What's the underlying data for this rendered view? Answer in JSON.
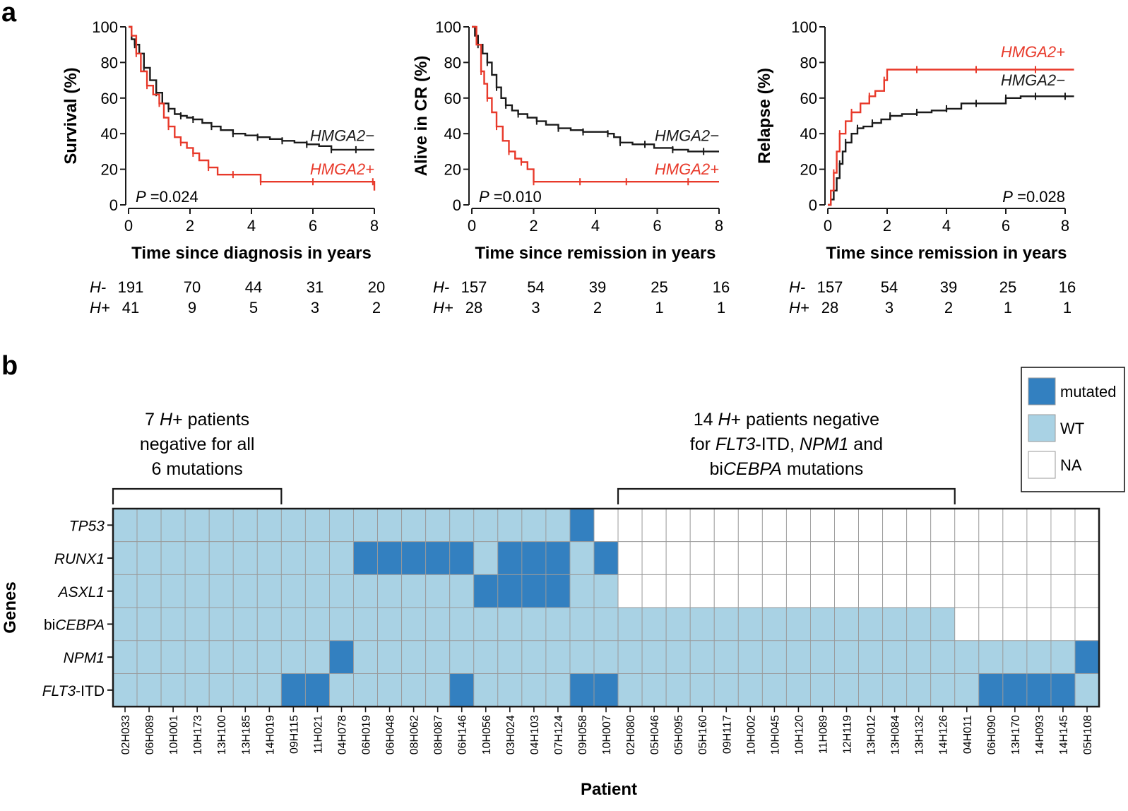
{
  "panel_labels": {
    "a": "a",
    "b": "b"
  },
  "colors": {
    "neg": "#1a1a1a",
    "pos": "#e8392a",
    "mutated": "#3380c0",
    "wt": "#a9d2e4",
    "na": "#ffffff",
    "grid": "#9a9a9a"
  },
  "chart_data": [
    {
      "type": "line",
      "title": "",
      "ylabel": "Survival (%)",
      "xlabel": "Time since diagnosis in years",
      "xlim": [
        0,
        8
      ],
      "ylim": [
        0,
        100
      ],
      "xticks": [
        0,
        2,
        4,
        6,
        8
      ],
      "yticks": [
        0,
        20,
        40,
        60,
        80,
        100
      ],
      "pvalue": {
        "prefix": "P",
        "text": " =0.024",
        "position": "bottom-left"
      },
      "series": [
        {
          "name": "HMGA2−",
          "color": "#1a1a1a",
          "x": [
            0,
            0.1,
            0.2,
            0.35,
            0.5,
            0.7,
            0.9,
            1.1,
            1.3,
            1.5,
            1.7,
            1.9,
            2.1,
            2.4,
            2.7,
            3.0,
            3.4,
            3.8,
            4.2,
            4.6,
            5.0,
            5.4,
            5.8,
            6.2,
            6.6,
            7.0,
            7.4,
            7.8,
            8.0
          ],
          "y": [
            100,
            93,
            90,
            85,
            77,
            70,
            63,
            57,
            54,
            51,
            50,
            49,
            48,
            46,
            44,
            42,
            40,
            39,
            38,
            37,
            36,
            35,
            34,
            33,
            31,
            31,
            31,
            31,
            31
          ]
        },
        {
          "name": "HMGA2+",
          "color": "#e8392a",
          "x": [
            0,
            0.1,
            0.25,
            0.4,
            0.6,
            0.8,
            1.0,
            1.15,
            1.3,
            1.5,
            1.7,
            1.9,
            2.1,
            2.3,
            2.6,
            2.9,
            3.4,
            4.0,
            4.3,
            5.0,
            6.0,
            7.0,
            7.95,
            8.0
          ],
          "y": [
            100,
            95,
            85,
            75,
            67,
            62,
            57,
            49,
            44,
            38,
            35,
            32,
            29,
            25,
            21,
            17,
            17,
            17,
            13,
            13,
            13,
            13,
            13,
            8
          ]
        }
      ],
      "curve_labels": [
        {
          "text": "HMGA2−",
          "at": [
            8,
            36
          ]
        },
        {
          "text": "HMGA2+",
          "at": [
            8,
            17
          ]
        }
      ],
      "at_risk": {
        "rows": [
          {
            "label": "H-",
            "values": [
              "191",
              "70",
              "44",
              "31",
              "20"
            ]
          },
          {
            "label": "H+",
            "values": [
              "41",
              "9",
              "5",
              "3",
              "2"
            ]
          }
        ]
      }
    },
    {
      "type": "line",
      "title": "",
      "ylabel": "Alive in CR (%)",
      "xlabel": "Time since remission in years",
      "xlim": [
        0,
        8
      ],
      "ylim": [
        0,
        100
      ],
      "xticks": [
        0,
        2,
        4,
        6,
        8
      ],
      "yticks": [
        0,
        20,
        40,
        60,
        80,
        100
      ],
      "pvalue": {
        "prefix": "P",
        "text": " =0.010",
        "position": "bottom-left"
      },
      "series": [
        {
          "name": "HMGA2−",
          "color": "#1a1a1a",
          "x": [
            0,
            0.1,
            0.2,
            0.35,
            0.5,
            0.65,
            0.8,
            0.95,
            1.1,
            1.3,
            1.5,
            1.8,
            2.1,
            2.4,
            2.8,
            3.2,
            3.6,
            4.0,
            4.4,
            4.6,
            4.8,
            5.2,
            5.6,
            5.9,
            6.5,
            7.0,
            7.5,
            8.0
          ],
          "y": [
            100,
            95,
            90,
            85,
            80,
            73,
            66,
            60,
            56,
            53,
            51,
            49,
            47,
            45,
            43,
            42,
            41,
            41,
            40,
            38,
            35,
            34,
            34,
            32,
            31,
            30,
            30,
            30
          ]
        },
        {
          "name": "HMGA2+",
          "color": "#e8392a",
          "x": [
            0,
            0.15,
            0.3,
            0.4,
            0.5,
            0.65,
            0.8,
            1.0,
            1.2,
            1.4,
            1.6,
            1.8,
            2.0,
            2.5,
            3.5,
            4.2,
            5.0,
            6.0,
            7.0,
            8.0
          ],
          "y": [
            100,
            90,
            75,
            68,
            60,
            52,
            44,
            36,
            30,
            26,
            24,
            20,
            13,
            13,
            13,
            13,
            13,
            13,
            13,
            13
          ]
        }
      ],
      "curve_labels": [
        {
          "text": "HMGA2−",
          "at": [
            8,
            36
          ]
        },
        {
          "text": "HMGA2+",
          "at": [
            8,
            17
          ]
        }
      ],
      "at_risk": {
        "rows": [
          {
            "label": "H-",
            "values": [
              "157",
              "54",
              "39",
              "25",
              "16"
            ]
          },
          {
            "label": "H+",
            "values": [
              "28",
              "3",
              "2",
              "1",
              "1"
            ]
          }
        ]
      }
    },
    {
      "type": "line",
      "title": "",
      "ylabel": "Relapse (%)",
      "xlabel": "Time since remission in years",
      "xlim": [
        0,
        8
      ],
      "ylim": [
        0,
        100
      ],
      "xticks": [
        0,
        2,
        4,
        6,
        8
      ],
      "yticks": [
        0,
        20,
        40,
        60,
        80,
        100
      ],
      "pvalue": {
        "prefix": "P",
        "text": " =0.028",
        "position": "bottom-right"
      },
      "series": [
        {
          "name": "HMGA2−",
          "color": "#1a1a1a",
          "x": [
            0,
            0.1,
            0.2,
            0.3,
            0.4,
            0.5,
            0.6,
            0.8,
            1.0,
            1.2,
            1.5,
            1.8,
            2.1,
            2.5,
            3.0,
            3.5,
            4.0,
            4.5,
            5.0,
            5.5,
            6.0,
            6.5,
            7.0,
            7.5,
            8.0,
            8.3
          ],
          "y": [
            0,
            3,
            8,
            15,
            23,
            30,
            35,
            40,
            43,
            44,
            46,
            48,
            50,
            51,
            52,
            53,
            54,
            57,
            57,
            57,
            60,
            61,
            61,
            61,
            61,
            61
          ]
        },
        {
          "name": "HMGA2+",
          "color": "#e8392a",
          "x": [
            0,
            0.1,
            0.2,
            0.3,
            0.4,
            0.6,
            0.8,
            1.1,
            1.4,
            1.6,
            1.9,
            2.0,
            3.0,
            4.0,
            5.0,
            6.0,
            7.0,
            8.0,
            8.3
          ],
          "y": [
            0,
            8,
            18,
            30,
            40,
            47,
            52,
            57,
            61,
            64,
            70,
            76,
            76,
            76,
            76,
            76,
            76,
            76,
            76
          ]
        }
      ],
      "curve_labels": [
        {
          "text": "HMGA2+",
          "at": [
            8,
            83
          ]
        },
        {
          "text": "HMGA2−",
          "at": [
            8,
            67
          ]
        }
      ],
      "at_risk": {
        "rows": [
          {
            "label": "H-",
            "values": [
              "157",
              "54",
              "39",
              "25",
              "16"
            ]
          },
          {
            "label": "H+",
            "values": [
              "28",
              "3",
              "2",
              "1",
              "1"
            ]
          }
        ]
      }
    },
    {
      "type": "heatmap",
      "ylabel": "Genes",
      "xlabel": "Patient",
      "genes": [
        {
          "pre": "",
          "italic": "TP53",
          "post": ""
        },
        {
          "pre": "",
          "italic": "RUNX1",
          "post": ""
        },
        {
          "pre": "",
          "italic": "ASXL1",
          "post": ""
        },
        {
          "pre": "bi",
          "italic": "CEBPA",
          "post": ""
        },
        {
          "pre": "",
          "italic": "NPM1",
          "post": ""
        },
        {
          "pre": "",
          "italic": "FLT3",
          "post": "-ITD"
        }
      ],
      "patients": [
        "02H033",
        "06H089",
        "10H001",
        "10H173",
        "13H100",
        "13H185",
        "14H019",
        "09H115",
        "11H021",
        "04H078",
        "06H019",
        "06H048",
        "08H062",
        "08H087",
        "06H146",
        "10H056",
        "03H024",
        "04H103",
        "07H124",
        "09H058",
        "10H007",
        "02H080",
        "05H046",
        "05H095",
        "05H160",
        "09H117",
        "10H002",
        "10H045",
        "10H120",
        "11H089",
        "12H119",
        "13H012",
        "13H084",
        "13H132",
        "14H126",
        "04H011",
        "06H090",
        "13H170",
        "14H093",
        "14H145",
        "05H108"
      ],
      "status_key": {
        "M": "mutated",
        "W": "WT",
        "N": "NA"
      },
      "matrix": [
        "WWWWWWWWWWWWWWWWWWWMNNNNNNNNNNNNNNNNNNNN",
        "WWWWWWWWWWMMMMMWMMMWMNNNNNNNNNNNNNNNNNNNN",
        "WWWWWWWWWWWWWWWMMMMWWNNNNNNNNNNNNNNNNNNNN",
        "WWWWWWWWWWWWWWWWWWWWWWWWWWWWWWWWWWWNNNNNN",
        "WWWWWWWWWMWWWWWWWWWWWWWWWWWWWWWWWWWWWWWWM",
        "WWWWWWWMMWWWWWMWWWWMMWWWWWWWWWWWWWWWMMMMW"
      ],
      "legend": [
        {
          "key": "M",
          "label": "mutated"
        },
        {
          "key": "W",
          "label": "WT"
        },
        {
          "key": "N",
          "label": "NA"
        }
      ],
      "bracket_left": {
        "line1": {
          "a": "7 ",
          "i": "H",
          "b": "+ patients"
        },
        "line2": "negative for all",
        "line3": "6 mutations",
        "from": 0,
        "to": 7
      },
      "bracket_right": {
        "line1": {
          "a": "14 ",
          "i": "H",
          "b": "+ patients negative"
        },
        "line2": {
          "a": "for ",
          "i1": "FLT3",
          "b": "-ITD, ",
          "i2": "NPM1",
          "c": " and"
        },
        "line3": {
          "a": "bi",
          "i": "CEBPA",
          "b": " mutations"
        },
        "from": 21,
        "to": 35
      }
    }
  ]
}
